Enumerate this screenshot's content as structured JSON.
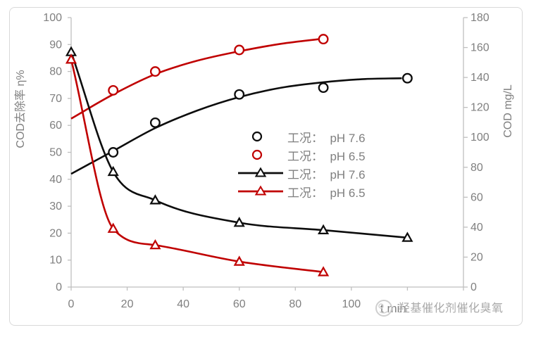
{
  "chart_data": {
    "type": "line",
    "title": "",
    "x_axis": {
      "label": "t min",
      "min": 0,
      "max": 140,
      "tick_step": 20,
      "labeled_tick_max": 100
    },
    "y_axis_left": {
      "label": "COD去除率 η%",
      "min": 0,
      "max": 100,
      "tick_step": 10
    },
    "y_axis_right": {
      "label": "COD mg/L",
      "min": 0,
      "max": 180,
      "tick_step": 20
    },
    "grid": false,
    "legend_position": "center-right",
    "series": [
      {
        "name": "工况：  pH 7.6",
        "axis": "left",
        "marker": "circle",
        "line_through_points": false,
        "color": "#0d0d0d",
        "points": [
          [
            15,
            50
          ],
          [
            30,
            61
          ],
          [
            60,
            71.5
          ],
          [
            90,
            74
          ],
          [
            120,
            77.5
          ]
        ],
        "trend": [
          [
            0,
            42
          ],
          [
            15,
            50.5
          ],
          [
            30,
            59
          ],
          [
            45,
            65.5
          ],
          [
            60,
            70.5
          ],
          [
            75,
            74
          ],
          [
            90,
            76
          ],
          [
            105,
            77.2
          ],
          [
            118,
            77.5
          ]
        ]
      },
      {
        "name": "工况：  pH 6.5",
        "axis": "left",
        "marker": "circle",
        "line_through_points": false,
        "color": "#c00000",
        "points": [
          [
            15,
            73
          ],
          [
            30,
            80
          ],
          [
            60,
            88
          ],
          [
            90,
            92
          ]
        ],
        "trend": [
          [
            0,
            62.5
          ],
          [
            15,
            71.5
          ],
          [
            30,
            79
          ],
          [
            45,
            84
          ],
          [
            60,
            87.5
          ],
          [
            75,
            90.3
          ],
          [
            90,
            92.2
          ]
        ]
      },
      {
        "name": "工况：  pH 7.6",
        "axis": "right",
        "marker": "triangle",
        "line_through_points": true,
        "color": "#0d0d0d",
        "points": [
          [
            0,
            157
          ],
          [
            15,
            77
          ],
          [
            30,
            58
          ],
          [
            60,
            43
          ],
          [
            90,
            38
          ],
          [
            120,
            33
          ]
        ]
      },
      {
        "name": "工况：  pH 6.5",
        "axis": "right",
        "marker": "triangle",
        "line_through_points": true,
        "color": "#c00000",
        "points": [
          [
            0,
            152
          ],
          [
            15,
            39
          ],
          [
            30,
            28
          ],
          [
            60,
            17
          ],
          [
            90,
            10
          ]
        ]
      }
    ]
  },
  "watermark": {
    "text": "羟基催化剂催化臭氧"
  },
  "colors": {
    "series_black": "#0d0d0d",
    "series_red": "#c00000",
    "axis_line": "#bfbfbf",
    "tick_text": "#7f7f7f",
    "legend_text": "#7f7f7f",
    "watermark": "#a9a9a9",
    "frame_border": "#d9d9d9",
    "background": "#ffffff"
  }
}
